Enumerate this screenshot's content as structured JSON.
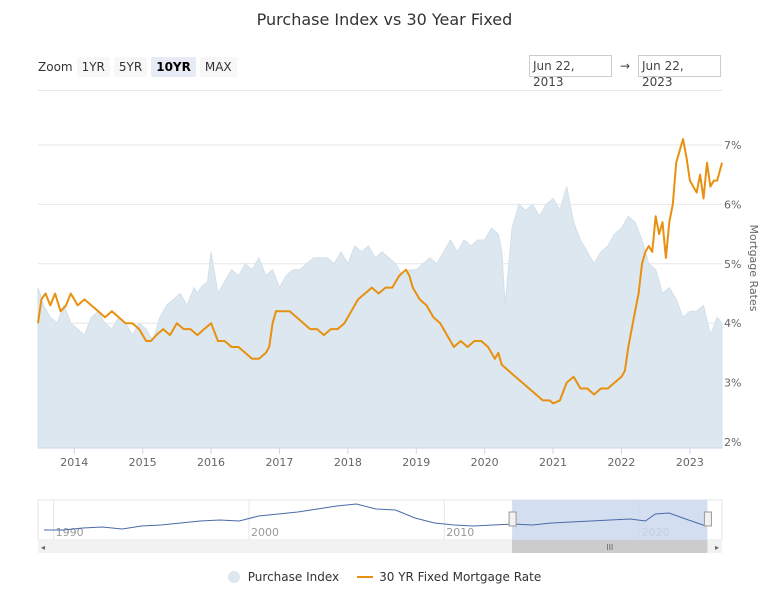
{
  "title": "Purchase Index vs 30 Year Fixed",
  "zoom": {
    "label": "Zoom",
    "buttons": [
      {
        "label": "1YR",
        "active": false
      },
      {
        "label": "5YR",
        "active": false
      },
      {
        "label": "10YR",
        "active": true
      },
      {
        "label": "MAX",
        "active": false
      }
    ]
  },
  "range": {
    "from": "Jun 22, 2013",
    "separator": "→",
    "to": "Jun 22, 2023"
  },
  "colors": {
    "purchase_index_fill": "#dde7ef",
    "purchase_index_stroke": "#d3e0ea",
    "mortgage_line": "#e8900f",
    "navigator_line": "#4a6ba8",
    "navigator_mask": "#cdd8ee",
    "grid": "#e6e6e6"
  },
  "legend": [
    {
      "label": "Purchase Index",
      "icon": "circle-icon"
    },
    {
      "label": "30 YR Fixed Mortgage Rate",
      "icon": "line-icon"
    }
  ],
  "chart_data": {
    "type": "line",
    "title": "Purchase Index vs 30 Year Fixed",
    "xlabel": "",
    "ylabel": "Mortgage Rates",
    "xlim": [
      2013.47,
      2023.47
    ],
    "ylim": [
      2,
      7.5
    ],
    "y_ticks": [
      "2%",
      "3%",
      "4%",
      "5%",
      "6%",
      "7%"
    ],
    "x_ticks": [
      "2014",
      "2015",
      "2016",
      "2017",
      "2018",
      "2019",
      "2020",
      "2021",
      "2022",
      "2023"
    ],
    "grid": true,
    "legend_position": "bottom",
    "series": [
      {
        "name": "Purchase Index",
        "type": "area",
        "axis_note": "plotted on shared visual scale",
        "x": [
          2013.47,
          2013.55,
          2013.65,
          2013.75,
          2013.85,
          2013.95,
          2014.05,
          2014.15,
          2014.25,
          2014.35,
          2014.45,
          2014.55,
          2014.65,
          2014.75,
          2014.85,
          2014.95,
          2015.05,
          2015.15,
          2015.25,
          2015.35,
          2015.45,
          2015.55,
          2015.65,
          2015.75,
          2015.8,
          2015.85,
          2015.95,
          2016.0,
          2016.1,
          2016.2,
          2016.3,
          2016.4,
          2016.5,
          2016.6,
          2016.7,
          2016.8,
          2016.9,
          2017.0,
          2017.1,
          2017.2,
          2017.3,
          2017.4,
          2017.5,
          2017.6,
          2017.7,
          2017.8,
          2017.9,
          2018.0,
          2018.1,
          2018.2,
          2018.3,
          2018.4,
          2018.5,
          2018.6,
          2018.7,
          2018.8,
          2018.9,
          2019.0,
          2019.1,
          2019.2,
          2019.3,
          2019.4,
          2019.5,
          2019.6,
          2019.7,
          2019.8,
          2019.9,
          2020.0,
          2020.1,
          2020.2,
          2020.25,
          2020.3,
          2020.4,
          2020.5,
          2020.6,
          2020.7,
          2020.8,
          2020.9,
          2021.0,
          2021.1,
          2021.2,
          2021.3,
          2021.4,
          2021.5,
          2021.6,
          2021.7,
          2021.8,
          2021.9,
          2022.0,
          2022.1,
          2022.2,
          2022.3,
          2022.4,
          2022.5,
          2022.6,
          2022.7,
          2022.8,
          2022.9,
          2023.0,
          2023.1,
          2023.2,
          2023.3,
          2023.4,
          2023.47
        ],
        "values": [
          4.6,
          4.3,
          4.1,
          4.0,
          4.3,
          4.0,
          3.9,
          3.8,
          4.1,
          4.2,
          4.0,
          3.9,
          4.1,
          4.0,
          3.8,
          4.0,
          3.9,
          3.7,
          4.1,
          4.3,
          4.4,
          4.5,
          4.3,
          4.6,
          4.5,
          4.6,
          4.7,
          5.2,
          4.5,
          4.7,
          4.9,
          4.8,
          5.0,
          4.9,
          5.1,
          4.8,
          4.9,
          4.6,
          4.8,
          4.9,
          4.9,
          5.0,
          5.1,
          5.1,
          5.1,
          5.0,
          5.2,
          5.0,
          5.3,
          5.2,
          5.3,
          5.1,
          5.2,
          5.1,
          5.0,
          4.8,
          4.9,
          4.9,
          5.0,
          5.1,
          5.0,
          5.2,
          5.4,
          5.2,
          5.4,
          5.3,
          5.4,
          5.4,
          5.6,
          5.5,
          5.2,
          4.3,
          5.6,
          6.0,
          5.9,
          6.0,
          5.8,
          6.0,
          6.1,
          5.9,
          6.3,
          5.7,
          5.4,
          5.2,
          5.0,
          5.2,
          5.3,
          5.5,
          5.6,
          5.8,
          5.7,
          5.4,
          5.0,
          4.9,
          4.5,
          4.6,
          4.4,
          4.1,
          4.2,
          4.2,
          4.3,
          3.8,
          4.1,
          4.0
        ]
      },
      {
        "name": "30 YR Fixed Mortgage Rate",
        "type": "line",
        "x": [
          2013.47,
          2013.52,
          2013.58,
          2013.65,
          2013.72,
          2013.8,
          2013.88,
          2013.95,
          2014.05,
          2014.15,
          2014.25,
          2014.35,
          2014.45,
          2014.55,
          2014.65,
          2014.75,
          2014.85,
          2014.95,
          2015.05,
          2015.12,
          2015.2,
          2015.3,
          2015.4,
          2015.5,
          2015.6,
          2015.7,
          2015.8,
          2015.9,
          2016.0,
          2016.1,
          2016.2,
          2016.3,
          2016.4,
          2016.5,
          2016.6,
          2016.7,
          2016.8,
          2016.85,
          2016.9,
          2016.95,
          2017.05,
          2017.15,
          2017.25,
          2017.35,
          2017.45,
          2017.55,
          2017.65,
          2017.75,
          2017.85,
          2017.95,
          2018.05,
          2018.15,
          2018.25,
          2018.35,
          2018.45,
          2018.55,
          2018.65,
          2018.75,
          2018.85,
          2018.9,
          2018.95,
          2019.05,
          2019.15,
          2019.25,
          2019.35,
          2019.45,
          2019.55,
          2019.65,
          2019.75,
          2019.85,
          2019.95,
          2020.05,
          2020.15,
          2020.2,
          2020.25,
          2020.35,
          2020.45,
          2020.55,
          2020.65,
          2020.75,
          2020.85,
          2020.95,
          2021.0,
          2021.1,
          2021.2,
          2021.3,
          2021.4,
          2021.5,
          2021.6,
          2021.7,
          2021.8,
          2021.9,
          2022.0,
          2022.05,
          2022.1,
          2022.15,
          2022.2,
          2022.25,
          2022.3,
          2022.35,
          2022.4,
          2022.45,
          2022.5,
          2022.55,
          2022.6,
          2022.65,
          2022.7,
          2022.75,
          2022.8,
          2022.85,
          2022.9,
          2022.95,
          2023.0,
          2023.05,
          2023.1,
          2023.15,
          2023.2,
          2023.25,
          2023.3,
          2023.35,
          2023.4,
          2023.47
        ],
        "values": [
          4.0,
          4.4,
          4.5,
          4.3,
          4.5,
          4.2,
          4.3,
          4.5,
          4.3,
          4.4,
          4.3,
          4.2,
          4.1,
          4.2,
          4.1,
          4.0,
          4.0,
          3.9,
          3.7,
          3.7,
          3.8,
          3.9,
          3.8,
          4.0,
          3.9,
          3.9,
          3.8,
          3.9,
          4.0,
          3.7,
          3.7,
          3.6,
          3.6,
          3.5,
          3.4,
          3.4,
          3.5,
          3.6,
          4.0,
          4.2,
          4.2,
          4.2,
          4.1,
          4.0,
          3.9,
          3.9,
          3.8,
          3.9,
          3.9,
          4.0,
          4.2,
          4.4,
          4.5,
          4.6,
          4.5,
          4.6,
          4.6,
          4.8,
          4.9,
          4.8,
          4.6,
          4.4,
          4.3,
          4.1,
          4.0,
          3.8,
          3.6,
          3.7,
          3.6,
          3.7,
          3.7,
          3.6,
          3.4,
          3.5,
          3.3,
          3.2,
          3.1,
          3.0,
          2.9,
          2.8,
          2.7,
          2.7,
          2.65,
          2.7,
          3.0,
          3.1,
          2.9,
          2.9,
          2.8,
          2.9,
          2.9,
          3.0,
          3.1,
          3.2,
          3.6,
          3.9,
          4.2,
          4.5,
          5.0,
          5.2,
          5.3,
          5.2,
          5.8,
          5.5,
          5.7,
          5.1,
          5.7,
          6.0,
          6.7,
          6.9,
          7.1,
          6.8,
          6.4,
          6.3,
          6.2,
          6.5,
          6.1,
          6.7,
          6.3,
          6.4,
          6.4,
          6.7
        ]
      }
    ]
  },
  "navigator": {
    "x_ticks": [
      "1990",
      "2000",
      "2010",
      "2020"
    ],
    "xlim": [
      1989.2,
      2023.5
    ],
    "selected_range": [
      2013.47,
      2023.47
    ],
    "series_x": [
      1989.5,
      1990.5,
      1991.5,
      1992.5,
      1993.5,
      1994.5,
      1995.5,
      1996.5,
      1997.5,
      1998.5,
      1999.5,
      2000.5,
      2001.5,
      2002.5,
      2003.5,
      2004.5,
      2005.5,
      2006.5,
      2007.5,
      2008.5,
      2009.5,
      2010.5,
      2011.5,
      2012.5,
      2013.5,
      2014.5,
      2015.5,
      2016.5,
      2017.5,
      2018.5,
      2019.5,
      2020.3,
      2020.8,
      2021.5,
      2022.5,
      2023.4
    ],
    "series_values": [
      10,
      10,
      12,
      13,
      11,
      14,
      15,
      17,
      19,
      20,
      19,
      24,
      26,
      28,
      31,
      34,
      36,
      31,
      30,
      22,
      17,
      15,
      14,
      15,
      16,
      15,
      17,
      18,
      19,
      20,
      21,
      19,
      26,
      27,
      20,
      14
    ]
  },
  "y_axis_label": "Mortgage Rates"
}
